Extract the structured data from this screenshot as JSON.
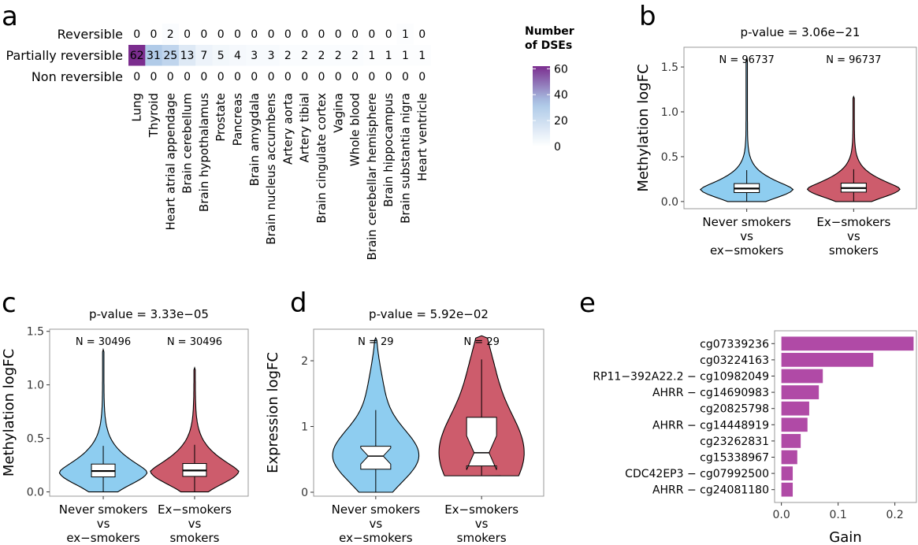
{
  "panels": {
    "a": "a",
    "b": "b",
    "c": "c",
    "d": "d",
    "e": "e"
  },
  "chart_data": [
    {
      "panel": "a",
      "type": "heatmap",
      "rows": [
        "Reversible",
        "Partially reversible",
        "Non reversible"
      ],
      "columns": [
        "Lung",
        "Thyroid",
        "Heart atrial appendage",
        "Brain cerebellum",
        "Brain hypothalamus",
        "Prostate",
        "Pancreas",
        "Brain amygdala",
        "Brain nucleus accumbens",
        "Artery aorta",
        "Artery tibial",
        "Brain cingulate cortex",
        "Vagina",
        "Whole blood",
        "Brain cerebellar hemisphere",
        "Brain hippocampus",
        "Brain substantia nigra",
        "Heart ventricle"
      ],
      "values": [
        [
          0,
          0,
          2,
          0,
          0,
          0,
          0,
          0,
          0,
          0,
          0,
          0,
          0,
          0,
          0,
          0,
          1,
          0
        ],
        [
          62,
          31,
          25,
          13,
          7,
          5,
          4,
          3,
          3,
          2,
          2,
          2,
          2,
          2,
          1,
          1,
          1,
          1
        ],
        [
          0,
          0,
          0,
          0,
          0,
          0,
          0,
          0,
          0,
          0,
          0,
          0,
          0,
          0,
          0,
          0,
          0,
          0
        ]
      ],
      "legend": {
        "title_lines": [
          "Number",
          "of DSEs"
        ],
        "ticks": [
          0,
          20,
          40,
          60
        ],
        "range": [
          0,
          62
        ],
        "colors": [
          "#ffffff",
          "#a9c6e6",
          "#7b2d8e"
        ]
      }
    },
    {
      "panel": "b",
      "type": "violin",
      "title": "p-value = 3.06e−21",
      "ylabel": "Methylation logFC",
      "ylim": [
        -0.08,
        1.72
      ],
      "yticks": [
        "0.0",
        "0.5",
        "1.0",
        "1.5"
      ],
      "groups": [
        {
          "lines": [
            "Never smokers",
            "vs",
            "ex−smokers"
          ],
          "n": "N = 96737",
          "color": "#8ecdf0",
          "box": {
            "q1": 0.1,
            "median": 0.145,
            "q3": 0.2,
            "whisker_low": 0.0,
            "whisker_high": 0.35
          },
          "max": 1.6,
          "notch": false
        },
        {
          "lines": [
            "Ex−smokers",
            "vs",
            "smokers"
          ],
          "n": "N = 96737",
          "color": "#cd5c6c",
          "box": {
            "q1": 0.105,
            "median": 0.15,
            "q3": 0.205,
            "whisker_low": 0.0,
            "whisker_high": 0.36
          },
          "max": 1.17,
          "notch": false
        }
      ]
    },
    {
      "panel": "c",
      "type": "violin",
      "title": "p-value = 3.33e−05",
      "ylabel": "Methylation logFC",
      "ylim": [
        -0.04,
        1.52
      ],
      "yticks": [
        "0.0",
        "0.5",
        "1.0",
        "1.5"
      ],
      "groups": [
        {
          "lines": [
            "Never smokers",
            "vs",
            "ex−smokers"
          ],
          "n": "N = 30496",
          "color": "#8ecdf0",
          "box": {
            "q1": 0.14,
            "median": 0.195,
            "q3": 0.26,
            "whisker_low": 0.0,
            "whisker_high": 0.43
          },
          "max": 1.33,
          "notch": false
        },
        {
          "lines": [
            "Ex−smokers",
            "vs",
            "smokers"
          ],
          "n": "N = 30496",
          "color": "#cd5c6c",
          "box": {
            "q1": 0.145,
            "median": 0.2,
            "q3": 0.265,
            "whisker_low": 0.0,
            "whisker_high": 0.44
          },
          "max": 1.16,
          "notch": false
        }
      ]
    },
    {
      "panel": "d",
      "type": "violin",
      "title": "p-value = 5.92e−02",
      "ylabel": "Expression logFC",
      "ylim": [
        -0.06,
        2.48
      ],
      "yticks": [
        "0",
        "1",
        "2"
      ],
      "groups": [
        {
          "lines": [
            "Never smokers",
            "vs",
            "ex−smokers"
          ],
          "n": "N = 29",
          "color": "#8ecdf0",
          "box": {
            "q1": 0.35,
            "median": 0.55,
            "q3": 0.7,
            "whisker_low": 0.0,
            "whisker_high": 1.25
          },
          "max": 2.35,
          "notch": true
        },
        {
          "lines": [
            "Ex−smokers",
            "vs",
            "smokers"
          ],
          "n": "N = 29",
          "color": "#cd5c6c",
          "box": {
            "q1": 0.4,
            "median": 0.6,
            "q3": 1.14,
            "whisker_low": 0.25,
            "whisker_high": 2.02
          },
          "max": 2.38,
          "notch": true
        }
      ]
    },
    {
      "panel": "e",
      "type": "bar",
      "orientation": "horizontal",
      "categories": [
        "cg07339236",
        "cg03224163",
        "RP11−392A22.2 − cg10982049",
        "AHRR − cg14690983",
        "cg20825798",
        "AHRR − cg14448919",
        "cg23262831",
        "cg15338967",
        "CDC42EP3 − cg07992500",
        "AHRR − cg24081180"
      ],
      "values": [
        0.233,
        0.162,
        0.073,
        0.066,
        0.049,
        0.046,
        0.034,
        0.028,
        0.02,
        0.02
      ],
      "xlabel": "Gain",
      "xlim": [
        -0.012,
        0.238
      ],
      "xticks": [
        "0.0",
        "0.1",
        "0.2"
      ],
      "color": "#b04aa6"
    }
  ]
}
